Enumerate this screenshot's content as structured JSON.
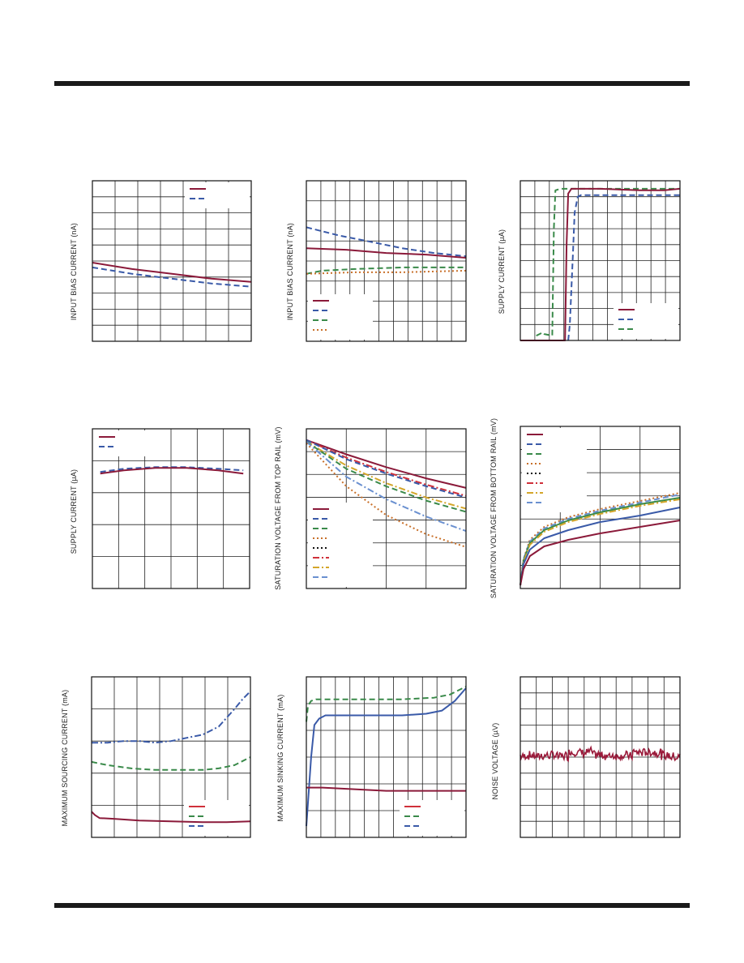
{
  "page": {
    "colors": {
      "rule": "#1a1a1a",
      "grid": "#222222"
    }
  },
  "chart_data": [
    {
      "id": "c1",
      "type": "line",
      "ylabel": "INPUT BIAS CURRENT (nA)",
      "grid": {
        "xdiv": 7,
        "ydiv": 10
      },
      "xlim": [
        0,
        1
      ],
      "ylim": [
        0,
        1
      ],
      "legend": {
        "placement": "top-right",
        "styles": [
          "#8b1a3a|solid",
          "#3a5aa8|dash"
        ]
      },
      "series": [
        {
          "color": "#8b1a3a",
          "dash": "solid",
          "x": [
            0,
            0.25,
            0.5,
            0.75,
            1
          ],
          "y": [
            0.49,
            0.45,
            0.42,
            0.39,
            0.37
          ]
        },
        {
          "color": "#3a5aa8",
          "dash": "dash",
          "x": [
            0,
            0.25,
            0.5,
            0.75,
            1
          ],
          "y": [
            0.46,
            0.42,
            0.39,
            0.36,
            0.34
          ]
        }
      ]
    },
    {
      "id": "c2",
      "type": "line",
      "ylabel": "INPUT BIAS CURRENT (nA)",
      "grid": {
        "xdiv": 11,
        "ydiv": 8
      },
      "xlim": [
        0,
        1
      ],
      "ylim": [
        0,
        1
      ],
      "legend": {
        "placement": "bottom-left",
        "styles": [
          "#8b1a3a|solid",
          "#3a5aa8|dash",
          "#3a8a4a|dash",
          "#c8702a|dot"
        ]
      },
      "series": [
        {
          "color": "#3a5aa8",
          "dash": "dash",
          "x": [
            0,
            0.2,
            0.4,
            0.6,
            0.8,
            1
          ],
          "y": [
            0.71,
            0.66,
            0.62,
            0.58,
            0.55,
            0.53
          ]
        },
        {
          "color": "#8b1a3a",
          "dash": "solid",
          "x": [
            0,
            0.25,
            0.5,
            0.75,
            1
          ],
          "y": [
            0.58,
            0.57,
            0.55,
            0.54,
            0.52
          ]
        },
        {
          "color": "#3a8a4a",
          "dash": "dash",
          "x": [
            0,
            0.1,
            0.3,
            0.6,
            1
          ],
          "y": [
            0.42,
            0.44,
            0.45,
            0.46,
            0.46
          ]
        },
        {
          "color": "#c8702a",
          "dash": "dot",
          "x": [
            0,
            0.3,
            0.6,
            1
          ],
          "y": [
            0.42,
            0.43,
            0.43,
            0.44
          ]
        }
      ]
    },
    {
      "id": "c3",
      "type": "line",
      "ylabel": "SUPPLY CURRENT (µA)",
      "grid": {
        "xdiv": 11,
        "ydiv": 10
      },
      "xlim": [
        0,
        1
      ],
      "ylim": [
        0,
        1
      ],
      "legend": {
        "placement": "bottom-right",
        "styles": [
          "#8b1a3a|solid",
          "#3a5aa8|dash",
          "#3a8a4a|dash"
        ]
      },
      "series": [
        {
          "color": "#3a8a4a",
          "dash": "dash",
          "x": [
            0.1,
            0.14,
            0.15,
            0.2,
            0.21,
            0.22,
            0.25,
            1
          ],
          "y": [
            0.03,
            0.05,
            0.04,
            0.03,
            0.7,
            0.94,
            0.95,
            0.95
          ]
        },
        {
          "color": "#8b1a3a",
          "dash": "solid",
          "x": [
            0,
            0.28,
            0.29,
            0.3,
            0.32,
            0.5,
            0.75,
            0.9,
            1
          ],
          "y": [
            0,
            0,
            0.6,
            0.92,
            0.95,
            0.95,
            0.94,
            0.94,
            0.95
          ]
        },
        {
          "color": "#3a5aa8",
          "dash": "dash",
          "x": [
            0.3,
            0.31,
            0.33,
            0.34,
            0.36,
            0.38,
            0.6,
            0.85,
            1
          ],
          "y": [
            0,
            0.1,
            0.55,
            0.8,
            0.9,
            0.91,
            0.91,
            0.91,
            0.91
          ]
        }
      ]
    },
    {
      "id": "c4",
      "type": "line",
      "ylabel": "SUPPLY CURRENT (µA)",
      "grid": {
        "xdiv": 6,
        "ydiv": 5
      },
      "xlim": [
        0,
        1
      ],
      "ylim": [
        0,
        1
      ],
      "legend": {
        "placement": "top-left",
        "styles": [
          "#8b1a3a|solid",
          "#3a5aa8|dash"
        ]
      },
      "series": [
        {
          "color": "#3a5aa8",
          "dash": "dash",
          "x": [
            0.05,
            0.2,
            0.4,
            0.6,
            0.8,
            0.96
          ],
          "y": [
            0.73,
            0.75,
            0.76,
            0.76,
            0.75,
            0.74
          ]
        },
        {
          "color": "#8b1a3a",
          "dash": "solid",
          "x": [
            0.05,
            0.2,
            0.4,
            0.6,
            0.8,
            0.96
          ],
          "y": [
            0.72,
            0.74,
            0.755,
            0.755,
            0.74,
            0.72
          ]
        }
      ]
    },
    {
      "id": "c5",
      "type": "line",
      "ylabel": "SATURATION VOLTAGE FROM TOP RAIL (mV)",
      "grid": {
        "xdiv": 4,
        "ydiv": 7
      },
      "xlim": [
        0,
        1
      ],
      "ylim": [
        0,
        1
      ],
      "legend": {
        "placement": "bottom-left",
        "styles": [
          "#8b1a3a|solid",
          "#3a5aa8|dash",
          "#3a8a4a|dash",
          "#c8702a|dot",
          "#111111|dot",
          "#d0303a|dashdot",
          "#d4a62a|dashdot",
          "#6a90d0|dash"
        ]
      },
      "series": [
        {
          "color": "#8b1a3a",
          "dash": "solid",
          "x": [
            0,
            0.25,
            0.5,
            0.75,
            1
          ],
          "y": [
            0.93,
            0.84,
            0.76,
            0.69,
            0.63
          ]
        },
        {
          "color": "#d0303a",
          "dash": "dashdot",
          "x": [
            0,
            0.25,
            0.5,
            0.75,
            1
          ],
          "y": [
            0.93,
            0.82,
            0.73,
            0.65,
            0.58
          ]
        },
        {
          "color": "#3a5aa8",
          "dash": "dash",
          "x": [
            0,
            0.25,
            0.5,
            0.75,
            1
          ],
          "y": [
            0.93,
            0.81,
            0.72,
            0.64,
            0.57
          ]
        },
        {
          "color": "#d4a62a",
          "dash": "dashdot",
          "x": [
            0,
            0.25,
            0.5,
            0.75,
            1
          ],
          "y": [
            0.92,
            0.77,
            0.66,
            0.57,
            0.5
          ]
        },
        {
          "color": "#3a8a4a",
          "dash": "dash",
          "x": [
            0,
            0.25,
            0.5,
            0.75,
            1
          ],
          "y": [
            0.92,
            0.75,
            0.64,
            0.55,
            0.48
          ]
        },
        {
          "color": "#6a90d0",
          "dashed": true,
          "dash": "dashdot",
          "x": [
            0,
            0.25,
            0.5,
            0.75,
            1
          ],
          "y": [
            0.92,
            0.7,
            0.56,
            0.45,
            0.36
          ]
        },
        {
          "color": "#c8702a",
          "dash": "dot",
          "x": [
            0,
            0.25,
            0.5,
            0.75,
            1
          ],
          "y": [
            0.91,
            0.64,
            0.46,
            0.34,
            0.26
          ]
        }
      ]
    },
    {
      "id": "c6",
      "type": "line",
      "ylabel": "SATURATION VOLTAGE FROM BOTTOM RAIL (mV)",
      "grid": {
        "xdiv": 4,
        "ydiv": 7
      },
      "xlim": [
        0,
        1
      ],
      "ylim": [
        0,
        1
      ],
      "legend": {
        "placement": "top-left",
        "styles": [
          "#8b1a3a|solid",
          "#3a5aa8|dash",
          "#3a8a4a|dash",
          "#c8702a|dot",
          "#111111|dot",
          "#d0303a|dashdot",
          "#d4a62a|dashdot",
          "#6a90d0|dash"
        ]
      },
      "series": [
        {
          "color": "#c8702a",
          "dash": "dot",
          "x": [
            0,
            0.02,
            0.06,
            0.15,
            0.3,
            0.5,
            0.75,
            1
          ],
          "y": [
            0.02,
            0.18,
            0.3,
            0.38,
            0.44,
            0.49,
            0.54,
            0.59
          ]
        },
        {
          "color": "#6a90d0",
          "dash": "dash",
          "x": [
            0,
            0.02,
            0.06,
            0.15,
            0.3,
            0.5,
            0.75,
            1
          ],
          "y": [
            0.02,
            0.18,
            0.29,
            0.37,
            0.43,
            0.48,
            0.53,
            0.58
          ]
        },
        {
          "color": "#3a8a4a",
          "dash": "solid",
          "x": [
            0,
            0.02,
            0.06,
            0.15,
            0.3,
            0.5,
            0.75,
            1
          ],
          "y": [
            0.02,
            0.17,
            0.28,
            0.36,
            0.42,
            0.47,
            0.52,
            0.56
          ]
        },
        {
          "color": "#d4a62a",
          "dash": "dashdot",
          "x": [
            0,
            0.02,
            0.06,
            0.15,
            0.3,
            0.5,
            0.75,
            1
          ],
          "y": [
            0.02,
            0.16,
            0.27,
            0.35,
            0.41,
            0.46,
            0.51,
            0.55
          ]
        },
        {
          "color": "#3a5aa8",
          "dash": "solid",
          "x": [
            0,
            0.02,
            0.06,
            0.15,
            0.3,
            0.5,
            0.75,
            1
          ],
          "y": [
            0.02,
            0.15,
            0.24,
            0.31,
            0.36,
            0.41,
            0.45,
            0.5
          ]
        },
        {
          "color": "#8b1a3a",
          "dash": "solid",
          "x": [
            0,
            0.02,
            0.06,
            0.15,
            0.3,
            0.5,
            0.75,
            1
          ],
          "y": [
            0.02,
            0.12,
            0.2,
            0.26,
            0.3,
            0.34,
            0.38,
            0.42
          ]
        }
      ]
    },
    {
      "id": "c7",
      "type": "line",
      "ylabel": "MAXIMUM SOURCING CURRENT (mA)",
      "grid": {
        "xdiv": 7,
        "ydiv": 5
      },
      "xlim": [
        0,
        1
      ],
      "ylim": [
        0,
        1
      ],
      "legend": {
        "placement": "bottom-right",
        "styles": [
          "#d0303a|solid",
          "#3a8a4a|dash",
          "#3a5aa8|dash"
        ]
      },
      "series": [
        {
          "color": "#3a5aa8",
          "dash": "dashdot",
          "x": [
            0,
            0.1,
            0.2,
            0.3,
            0.4,
            0.5,
            0.6,
            0.7,
            0.8,
            0.9,
            0.95,
            1
          ],
          "y": [
            0.59,
            0.59,
            0.6,
            0.6,
            0.59,
            0.6,
            0.62,
            0.64,
            0.69,
            0.8,
            0.86,
            0.91
          ]
        },
        {
          "color": "#3a8a4a",
          "dash": "dash",
          "x": [
            0,
            0.1,
            0.25,
            0.4,
            0.55,
            0.7,
            0.8,
            0.9,
            1
          ],
          "y": [
            0.47,
            0.45,
            0.43,
            0.42,
            0.42,
            0.42,
            0.43,
            0.45,
            0.5
          ]
        },
        {
          "color": "#8b1a3a",
          "dash": "solid",
          "x": [
            0,
            0.02,
            0.05,
            0.15,
            0.3,
            0.5,
            0.7,
            0.85,
            1
          ],
          "y": [
            0.16,
            0.14,
            0.12,
            0.115,
            0.105,
            0.1,
            0.095,
            0.095,
            0.1
          ]
        }
      ]
    },
    {
      "id": "c8",
      "type": "line",
      "ylabel": "MAXIMUM SINKING CURRENT (mA)",
      "grid": {
        "xdiv": 11,
        "ydiv": 6
      },
      "xlim": [
        0,
        1
      ],
      "ylim": [
        0,
        1
      ],
      "legend": {
        "placement": "bottom-right",
        "styles": [
          "#d0303a|solid",
          "#3a8a4a|dash",
          "#3a5aa8|dash"
        ]
      },
      "series": [
        {
          "color": "#3a8a4a",
          "dash": "dash",
          "x": [
            0,
            0.01,
            0.03,
            0.06,
            0.12,
            0.3,
            0.6,
            0.8,
            0.9,
            1
          ],
          "y": [
            0.72,
            0.82,
            0.85,
            0.86,
            0.86,
            0.86,
            0.86,
            0.87,
            0.89,
            0.94
          ]
        },
        {
          "color": "#3a5aa8",
          "dash": "solid",
          "x": [
            0,
            0.03,
            0.05,
            0.08,
            0.12,
            0.3,
            0.6,
            0.75,
            0.85,
            0.93,
            1
          ],
          "y": [
            0.07,
            0.5,
            0.7,
            0.74,
            0.76,
            0.76,
            0.76,
            0.77,
            0.79,
            0.85,
            0.93
          ]
        },
        {
          "color": "#8b1a3a",
          "dash": "solid",
          "x": [
            0,
            0.1,
            0.3,
            0.5,
            0.7,
            0.85,
            1
          ],
          "y": [
            0.31,
            0.31,
            0.3,
            0.29,
            0.29,
            0.29,
            0.29
          ]
        }
      ]
    },
    {
      "id": "c9",
      "type": "line",
      "ylabel": "NOISE VOLTAGE (µV)",
      "grid": {
        "xdiv": 10,
        "ydiv": 10
      },
      "xlim": [
        0,
        1
      ],
      "ylim": [
        0,
        1
      ],
      "legend": {
        "placement": "none",
        "styles": []
      },
      "noise": {
        "color": "#9a1a3a",
        "base": 0.51,
        "amp": 0.05,
        "seed": 7,
        "points": 190
      }
    }
  ]
}
